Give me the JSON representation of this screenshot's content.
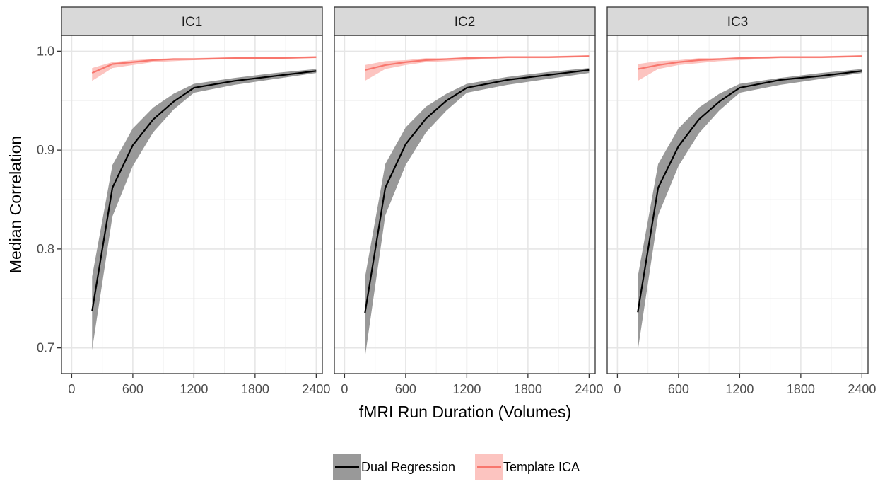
{
  "chart_data": {
    "type": "line",
    "xlabel": "fMRI Run Duration (Volumes)",
    "ylabel": "Median Correlation",
    "xlim": [
      -100,
      2460
    ],
    "ylim": [
      0.674,
      1.016
    ],
    "x_ticks": [
      0,
      600,
      1200,
      1800,
      2400
    ],
    "x_tick_labels": [
      "0",
      "600",
      "1200",
      "1800",
      "2400"
    ],
    "y_ticks": [
      0.7,
      0.8,
      0.9,
      1.0
    ],
    "y_tick_labels": [
      "0.7",
      "0.8",
      "0.9",
      "1.0"
    ],
    "grid": true,
    "legend_position": "bottom",
    "legend": [
      {
        "name": "Dual Regression",
        "line_color": "#000000",
        "fill_color": "#999999"
      },
      {
        "name": "Template ICA",
        "line_color": "#f8766d",
        "fill_color": "#fcc4c0"
      }
    ],
    "x": [
      200,
      400,
      600,
      800,
      1000,
      1200,
      1600,
      2000,
      2400
    ],
    "panels": [
      {
        "title": "IC1",
        "series": [
          {
            "name": "Dual Regression",
            "values": [
              0.737,
              0.862,
              0.905,
              0.931,
              0.949,
              0.963,
              0.97,
              0.975,
              0.98
            ],
            "lower": [
              0.698,
              0.833,
              0.884,
              0.918,
              0.941,
              0.958,
              0.966,
              0.972,
              0.978
            ],
            "upper": [
              0.772,
              0.885,
              0.922,
              0.943,
              0.957,
              0.967,
              0.973,
              0.978,
              0.982
            ]
          },
          {
            "name": "Template ICA",
            "values": [
              0.978,
              0.987,
              0.989,
              0.991,
              0.992,
              0.992,
              0.993,
              0.993,
              0.994
            ],
            "lower": [
              0.97,
              0.983,
              0.986,
              0.989,
              0.99,
              0.991,
              0.992,
              0.992,
              0.993
            ],
            "upper": [
              0.983,
              0.989,
              0.991,
              0.992,
              0.993,
              0.993,
              0.994,
              0.994,
              0.995
            ]
          }
        ]
      },
      {
        "title": "IC2",
        "series": [
          {
            "name": "Dual Regression",
            "values": [
              0.735,
              0.862,
              0.906,
              0.932,
              0.95,
              0.963,
              0.971,
              0.976,
              0.981
            ],
            "lower": [
              0.69,
              0.834,
              0.885,
              0.918,
              0.94,
              0.958,
              0.966,
              0.972,
              0.978
            ],
            "upper": [
              0.771,
              0.886,
              0.923,
              0.944,
              0.957,
              0.967,
              0.974,
              0.979,
              0.983
            ]
          },
          {
            "name": "Template ICA",
            "values": [
              0.981,
              0.986,
              0.989,
              0.991,
              0.992,
              0.993,
              0.994,
              0.994,
              0.995
            ],
            "lower": [
              0.97,
              0.982,
              0.986,
              0.989,
              0.99,
              0.991,
              0.993,
              0.993,
              0.994
            ],
            "upper": [
              0.986,
              0.99,
              0.991,
              0.993,
              0.993,
              0.994,
              0.995,
              0.995,
              0.996
            ]
          }
        ]
      },
      {
        "title": "IC3",
        "series": [
          {
            "name": "Dual Regression",
            "values": [
              0.736,
              0.862,
              0.904,
              0.931,
              0.949,
              0.963,
              0.971,
              0.975,
              0.98
            ],
            "lower": [
              0.697,
              0.834,
              0.884,
              0.917,
              0.94,
              0.958,
              0.966,
              0.972,
              0.978
            ],
            "upper": [
              0.772,
              0.886,
              0.922,
              0.943,
              0.957,
              0.967,
              0.973,
              0.978,
              0.982
            ]
          },
          {
            "name": "Template ICA",
            "values": [
              0.982,
              0.986,
              0.989,
              0.991,
              0.992,
              0.993,
              0.994,
              0.994,
              0.995
            ],
            "lower": [
              0.97,
              0.982,
              0.986,
              0.988,
              0.99,
              0.991,
              0.993,
              0.993,
              0.994
            ],
            "upper": [
              0.987,
              0.99,
              0.991,
              0.993,
              0.993,
              0.994,
              0.995,
              0.995,
              0.996
            ]
          }
        ]
      }
    ]
  }
}
